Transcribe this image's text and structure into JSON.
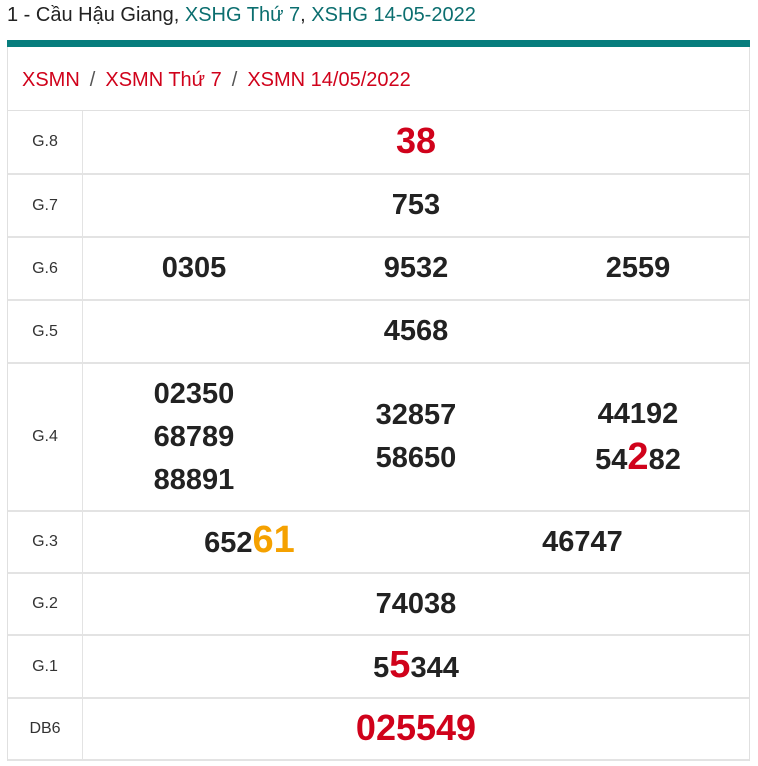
{
  "header": {
    "prefix": "1 - Cầu Hậu Giang, ",
    "link1": "XSHG Thứ 7",
    "comma": ", ",
    "link2": "XSHG 14-05-2022"
  },
  "breadcrumb": [
    {
      "label": "XSMN"
    },
    {
      "label": "XSMN Thứ 7"
    },
    {
      "label": "XSMN 14/05/2022"
    }
  ],
  "breadcrumb_separator": "/",
  "colors": {
    "accent": "#077d7d",
    "red": "#d0021b",
    "orange": "#f5a100"
  },
  "rows": [
    {
      "label": "G.8",
      "height": 63,
      "big": true,
      "cols": [
        [
          [
            {
              "t": "38"
            }
          ]
        ]
      ]
    },
    {
      "label": "G.7",
      "height": 63,
      "cols": [
        [
          [
            {
              "t": "753"
            }
          ]
        ]
      ]
    },
    {
      "label": "G.6",
      "height": 63,
      "cols": [
        [
          [
            {
              "t": "0305"
            }
          ]
        ],
        [
          [
            {
              "t": "9532"
            }
          ]
        ],
        [
          [
            {
              "t": "2559"
            }
          ]
        ]
      ]
    },
    {
      "label": "G.5",
      "height": 63,
      "cols": [
        [
          [
            {
              "t": "4568"
            }
          ]
        ]
      ]
    },
    {
      "label": "G.4",
      "height": 148,
      "cols": [
        [
          [
            {
              "t": "02350"
            }
          ],
          [
            {
              "t": "68789"
            }
          ],
          [
            {
              "t": "88891"
            }
          ]
        ],
        [
          [
            {
              "t": "32857"
            }
          ],
          [
            {
              "t": "58650"
            }
          ]
        ],
        [
          [
            {
              "t": "44192"
            }
          ],
          [
            {
              "t": "54"
            },
            {
              "t": "2",
              "hl": "red"
            },
            {
              "t": "82"
            }
          ]
        ]
      ]
    },
    {
      "label": "G.3",
      "height": 62,
      "cols": [
        [
          [
            {
              "t": "652"
            },
            {
              "t": "61",
              "hl": "orange"
            }
          ]
        ],
        [
          [
            {
              "t": "46747"
            }
          ]
        ]
      ]
    },
    {
      "label": "G.2",
      "height": 62,
      "cols": [
        [
          [
            {
              "t": "74038"
            }
          ]
        ]
      ]
    },
    {
      "label": "G.1",
      "height": 63,
      "cols": [
        [
          [
            {
              "t": "5"
            },
            {
              "t": "5",
              "hl": "red"
            },
            {
              "t": "344"
            }
          ]
        ]
      ]
    },
    {
      "label": "DB6",
      "height": 62,
      "big": true,
      "cols": [
        [
          [
            {
              "t": "025549"
            }
          ]
        ]
      ]
    }
  ]
}
